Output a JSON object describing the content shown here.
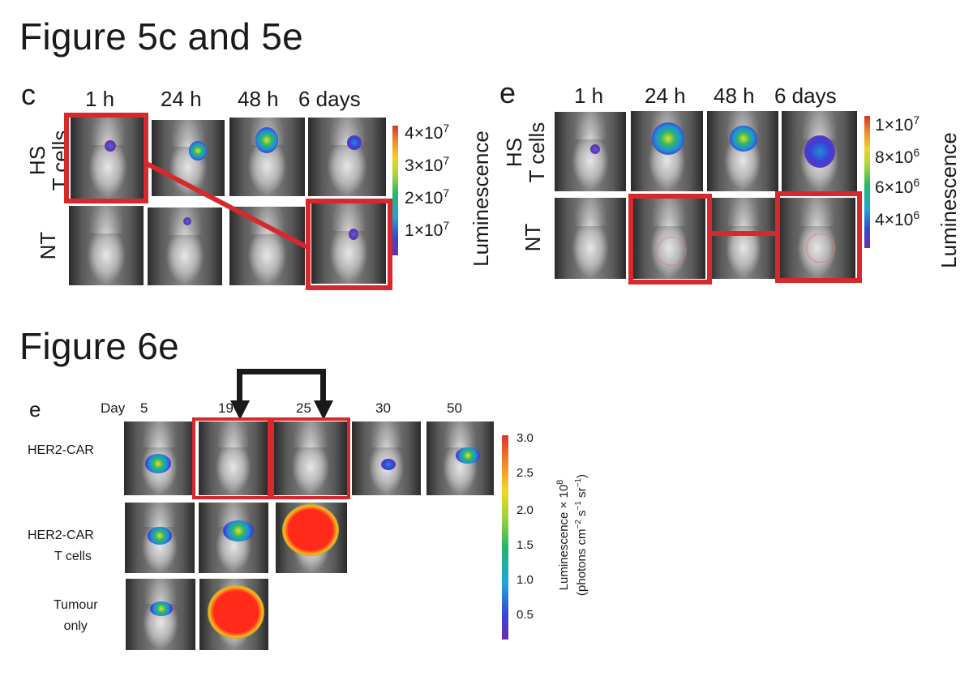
{
  "titles": {
    "fig5": "Figure 5c and 5e",
    "fig6": "Figure 6e"
  },
  "panel_c": {
    "letter": "c",
    "timepoints": [
      "1 h",
      "24 h",
      "48 h",
      "6 days"
    ],
    "rows": [
      {
        "label_line1": "HS",
        "label_line2": "T cells"
      },
      {
        "label_line1": "NT",
        "label_line2": ""
      }
    ],
    "colorbar": {
      "title": "Luminescence",
      "ticks": [
        {
          "mant": "4",
          "exp": "7"
        },
        {
          "mant": "3",
          "exp": "7"
        },
        {
          "mant": "2",
          "exp": "7"
        },
        {
          "mant": "1",
          "exp": "7"
        }
      ]
    }
  },
  "panel_e5": {
    "letter": "e",
    "timepoints": [
      "1 h",
      "24 h",
      "48 h",
      "6 days"
    ],
    "rows": [
      {
        "label_line1": "HS",
        "label_line2": "T cells"
      },
      {
        "label_line1": "NT",
        "label_line2": ""
      }
    ],
    "colorbar": {
      "title": "Luminescence",
      "ticks": [
        {
          "mant": "1",
          "exp": "7"
        },
        {
          "mant": "8",
          "exp": "6"
        },
        {
          "mant": "6",
          "exp": "6"
        },
        {
          "mant": "4",
          "exp": "6"
        }
      ]
    }
  },
  "panel_e6": {
    "letter": "e",
    "day_label": "Day",
    "days": [
      "5",
      "19",
      "25",
      "30",
      "50"
    ],
    "rows": [
      {
        "line1": "HER2-CAR",
        "line2": ""
      },
      {
        "line1": "HER2-CAR",
        "line2": "T cells"
      },
      {
        "line1": "Tumour",
        "line2": "only"
      }
    ],
    "colorbar": {
      "title_line1_a": "Luminescence × 10",
      "title_line1_exp": "8",
      "title_line2_a": "(photons cm",
      "title_line2_e1": "−2",
      "title_line2_b": " s",
      "title_line2_e2": "−1",
      "title_line2_c": " sr",
      "title_line2_e3": "−1",
      "title_line2_d": ")",
      "ticks": [
        "3.0",
        "2.5",
        "2.0",
        "1.5",
        "1.0",
        "0.5"
      ]
    }
  },
  "colors": {
    "highlight": "#d7282d",
    "arrow": "#1a1a1a"
  }
}
